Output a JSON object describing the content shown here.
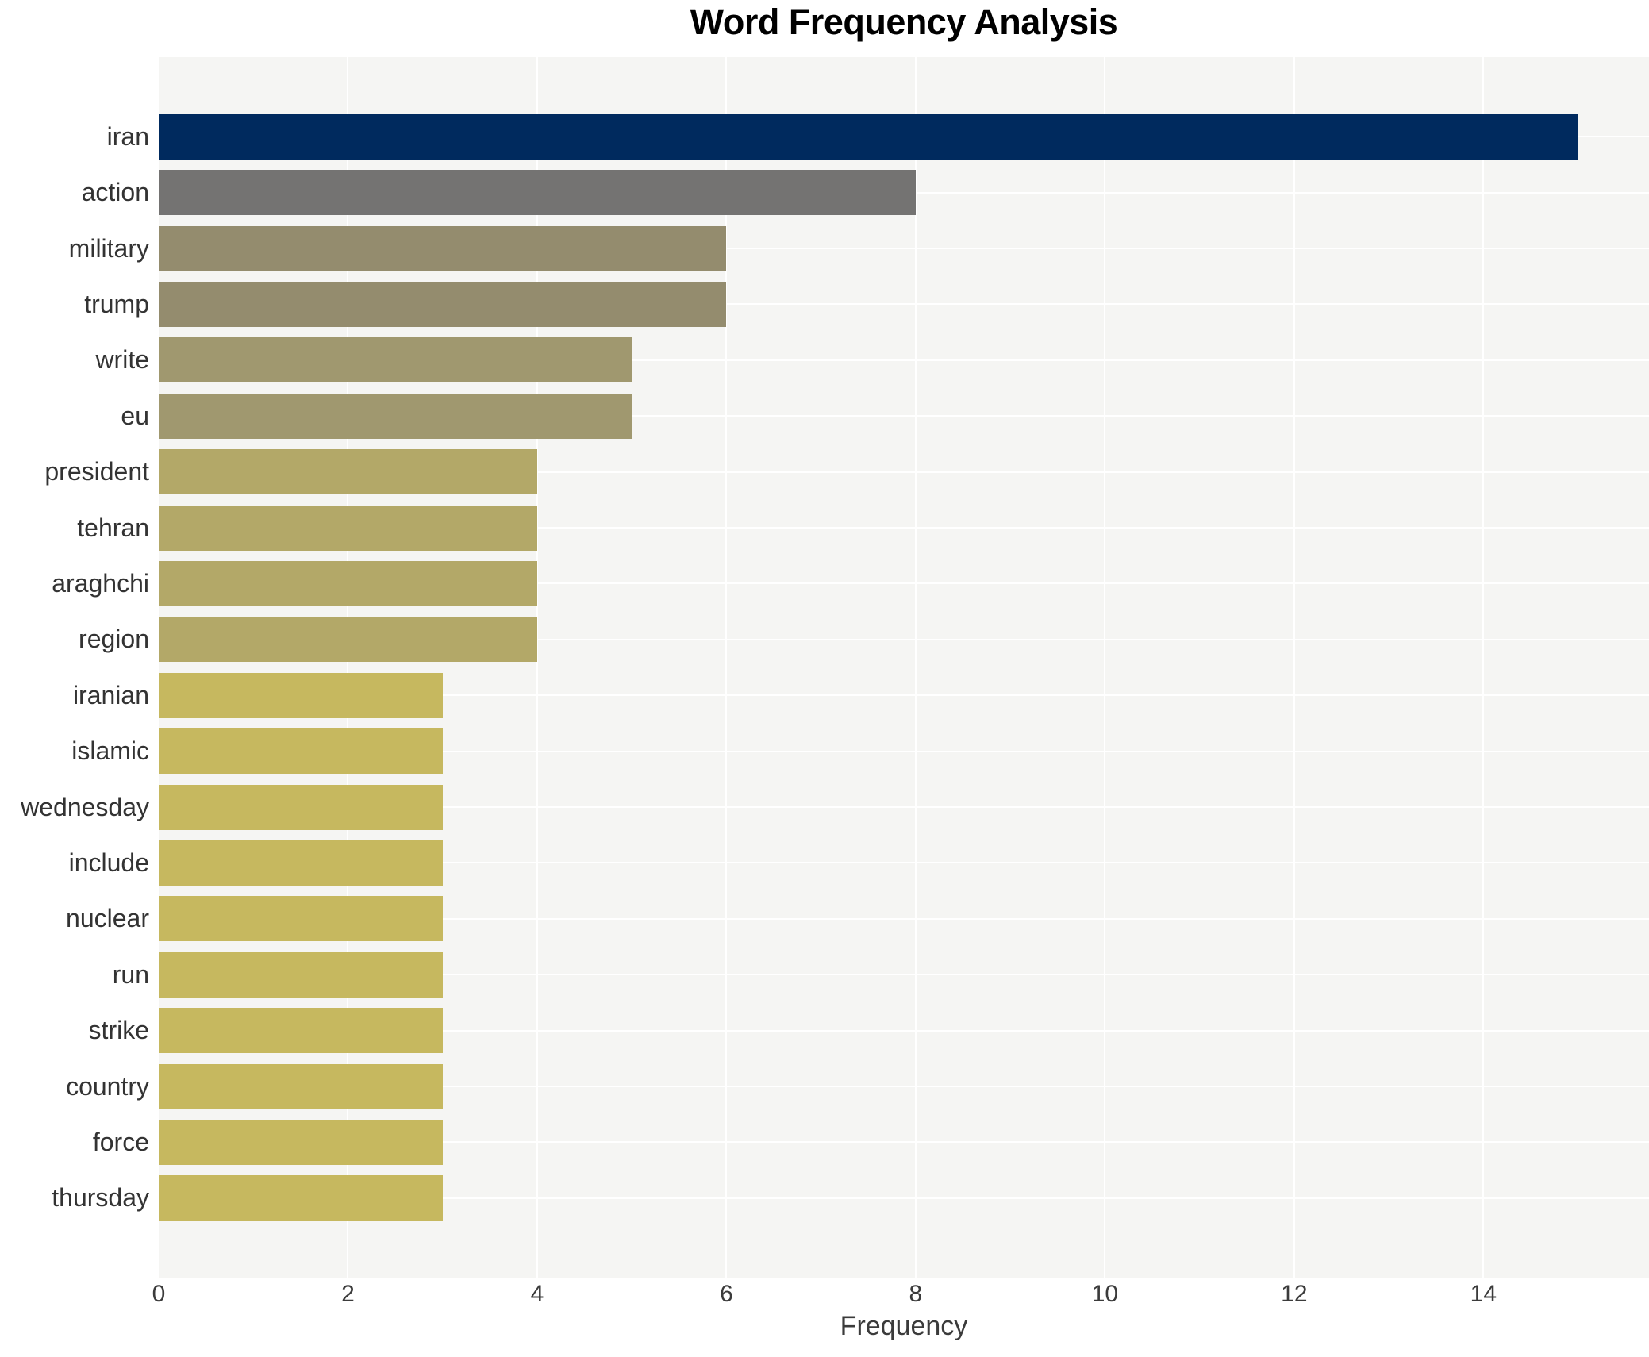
{
  "chart_data": {
    "type": "bar",
    "orientation": "horizontal",
    "title": "Word Frequency Analysis",
    "xlabel": "Frequency",
    "ylabel": "",
    "categories": [
      "iran",
      "action",
      "military",
      "trump",
      "write",
      "eu",
      "president",
      "tehran",
      "araghchi",
      "region",
      "iranian",
      "islamic",
      "wednesday",
      "include",
      "nuclear",
      "run",
      "strike",
      "country",
      "force",
      "thursday"
    ],
    "values": [
      15,
      8,
      6,
      6,
      5,
      5,
      4,
      4,
      4,
      4,
      3,
      3,
      3,
      3,
      3,
      3,
      3,
      3,
      3,
      3
    ],
    "bar_colors": [
      "#002a5e",
      "#747372",
      "#948c6e",
      "#948c6e",
      "#a0986f",
      "#a0986f",
      "#b3a868",
      "#b3a868",
      "#b3a868",
      "#b3a868",
      "#c6b85f",
      "#c6b85f",
      "#c6b85f",
      "#c6b85f",
      "#c6b85f",
      "#c6b85f",
      "#c6b85f",
      "#c6b85f",
      "#c6b85f",
      "#c6b85f"
    ],
    "xticks": [
      0,
      2,
      4,
      6,
      8,
      10,
      12,
      14
    ],
    "xlim": [
      0,
      15.75
    ],
    "grid": true,
    "legend": "none",
    "colors": {
      "plot_bg": "#f5f5f3",
      "grid": "#ffffff",
      "axis_text": "#3b3b3b",
      "label_text": "#333333",
      "title_text": "#000000"
    }
  }
}
